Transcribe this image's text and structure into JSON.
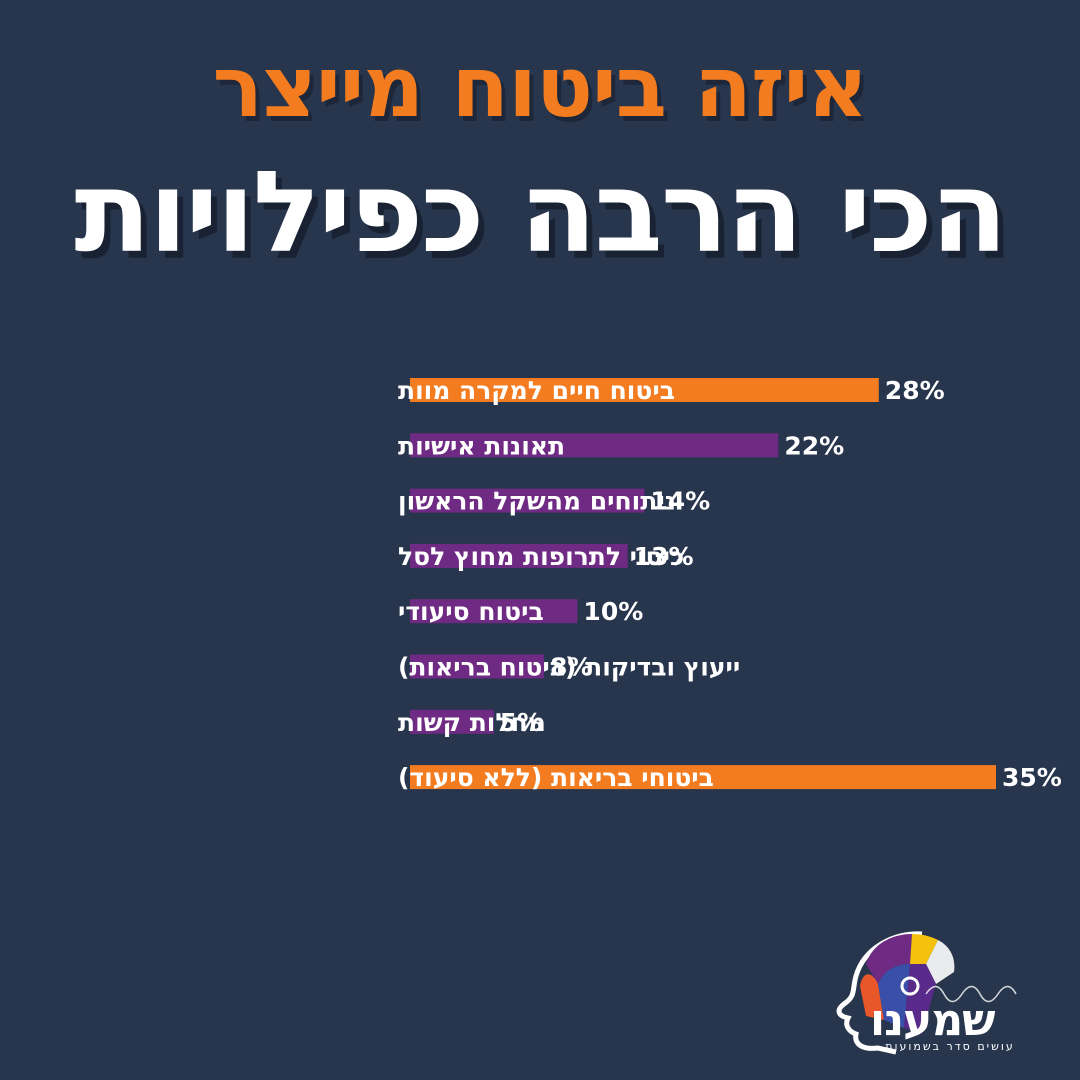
{
  "title": {
    "line1": "איזה ביטוח מייצר",
    "line2": "הכי הרבה כפילויות"
  },
  "colors": {
    "background": "#27354d",
    "accent_orange": "#f47c20",
    "bar_purple": "#6f2b83"
  },
  "chart_data": {
    "type": "bar",
    "orientation": "horizontal",
    "title": "איזה ביטוח מייצר הכי הרבה כפילויות",
    "categories": [
      "ביטוח חיים למקרה מוות",
      "תאונות אישיות",
      "ניתוחים מהשקל הראשון",
      "כיסוי לתרופות מחוץ לסל",
      "ביטוח סיעודי",
      "ייעוץ ובדיקות (ביטוח בריאות)",
      "מחלות קשות",
      "ביטוחי בריאות (ללא סיעוד)"
    ],
    "values": [
      28,
      22,
      14,
      13,
      10,
      8,
      5,
      35
    ],
    "value_labels": [
      "28%",
      "22%",
      "14%",
      "13%",
      "10%",
      "8%",
      "5%",
      "35%"
    ],
    "highlight": [
      true,
      false,
      false,
      false,
      false,
      false,
      false,
      true
    ],
    "xlim": [
      0,
      35
    ],
    "unit": "%"
  },
  "logo": {
    "name": "שמענו",
    "tagline": "עושים סדר בשמועות"
  }
}
